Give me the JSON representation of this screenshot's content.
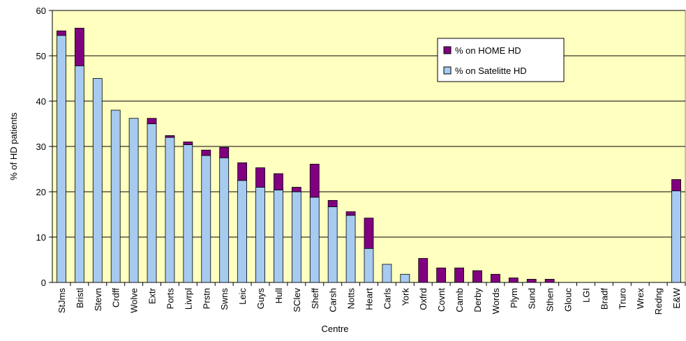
{
  "chart_data": {
    "type": "stacked_bar",
    "x_label": "Centre",
    "y_label": "% of HD patients",
    "categories": [
      "StJms",
      "Bristl",
      "Stevn",
      "Crdff",
      "Wolve",
      "Extr",
      "Ports",
      "Livrpl",
      "Prstn",
      "Swns",
      "Leic",
      "Guys",
      "Hull",
      "SClev",
      "Sheff",
      "Carsh",
      "Notts",
      "Heart",
      "Carls",
      "York",
      "Oxfrd",
      "Covnt",
      "Camb",
      "Derby",
      "Words",
      "Plym",
      "Sund",
      "Sthen",
      "Glouc",
      "LGI",
      "Bradf",
      "Truro",
      "Wrex",
      "Redng",
      "E&W"
    ],
    "series": [
      {
        "name": "% on Satelitte HD",
        "color": "#a6caf0",
        "values": [
          54.5,
          47.8,
          45,
          38,
          36.2,
          35,
          32,
          30.4,
          28,
          27.5,
          22.5,
          21,
          20.4,
          20,
          18.8,
          16.7,
          14.8,
          7.5,
          4,
          1.8,
          0,
          0,
          0,
          0,
          0,
          0,
          0,
          0,
          0,
          0,
          0,
          0,
          0,
          0,
          20.2
        ]
      },
      {
        "name": "% on HOME HD",
        "color": "#800080",
        "values": [
          1,
          8.3,
          0,
          0,
          0,
          1.2,
          0.4,
          0.6,
          1.2,
          2.3,
          3.9,
          4.3,
          3.6,
          1,
          7.3,
          1.4,
          0.8,
          6.7,
          0,
          0,
          5.3,
          3.2,
          3.2,
          2.6,
          1.8,
          1,
          0.7,
          0.7,
          0,
          0,
          0,
          0,
          0,
          0,
          2.5
        ]
      }
    ],
    "ylim": [
      0,
      60
    ],
    "yticks": [
      0,
      10,
      20,
      30,
      40,
      50,
      60
    ],
    "grid": true,
    "plot_background": "#ffffc0",
    "legend": "upper-right"
  }
}
